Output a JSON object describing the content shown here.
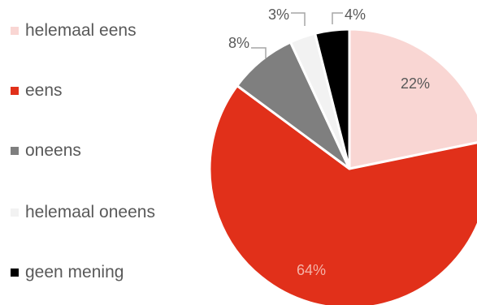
{
  "chart_data": {
    "type": "pie",
    "title": "",
    "legend_position": "left",
    "categories": [
      "helemaal eens",
      "eens",
      "oneens",
      "helemaal oneens",
      "geen mening"
    ],
    "values": [
      22,
      64,
      8,
      3,
      4
    ],
    "labels": [
      "22%",
      "64%",
      "8%",
      "3%",
      "4%"
    ],
    "colors": [
      "#F9D6D3",
      "#E1301A",
      "#7F7F7F",
      "#F2F2F2",
      "#000000"
    ]
  }
}
